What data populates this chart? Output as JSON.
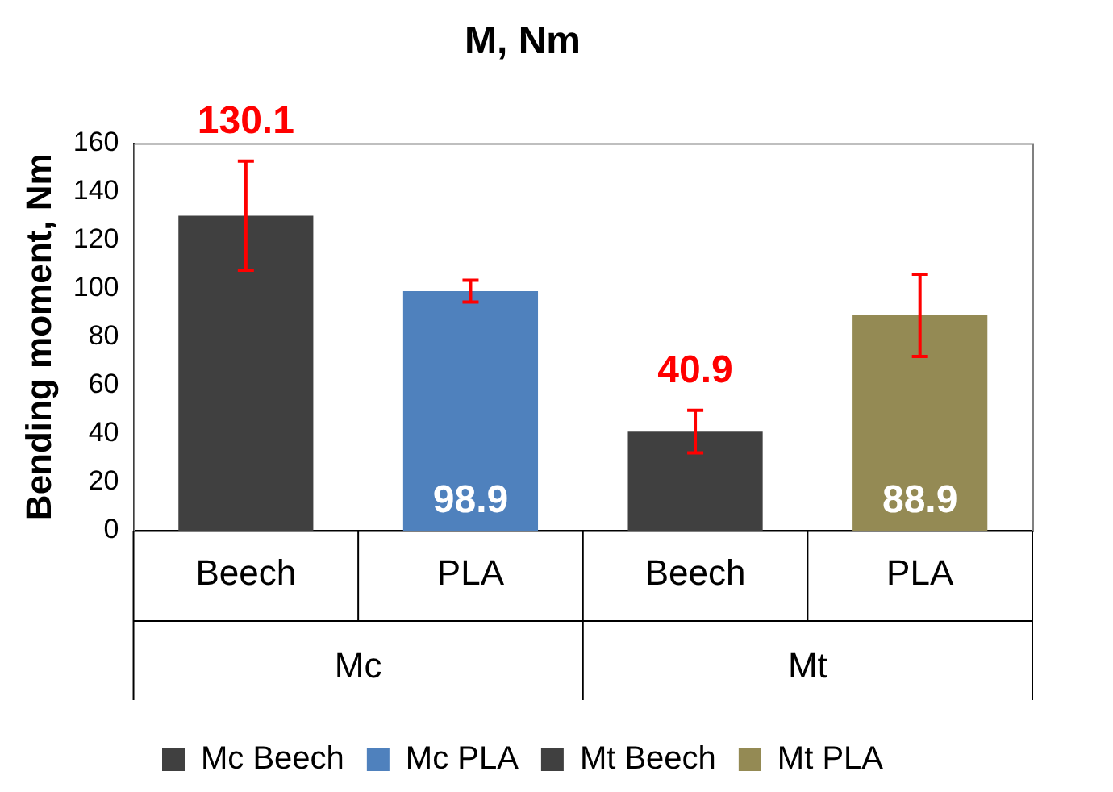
{
  "chart_data": {
    "type": "bar",
    "title": "M, Nm",
    "ylabel": "Bending moment, Nm",
    "categories": [
      "Beech",
      "PLA",
      "Beech",
      "PLA"
    ],
    "annotations": [
      "Mc",
      "Mt"
    ],
    "series": [
      {
        "name": "Mc Beech",
        "color": "#404040",
        "values": [
          130.1,
          null,
          null,
          null
        ],
        "errors": [
          22.5,
          null,
          null,
          null
        ],
        "value_labels": [
          "130.1",
          null,
          null,
          null
        ]
      },
      {
        "name": "Mc PLA",
        "color": "#4f81bd",
        "values": [
          null,
          98.9,
          null,
          null
        ],
        "errors": [
          null,
          4.5,
          null,
          null
        ],
        "value_labels": [
          null,
          "98.9",
          null,
          null
        ]
      },
      {
        "name": "Mt Beech",
        "color": "#404040",
        "values": [
          null,
          null,
          40.9,
          null
        ],
        "errors": [
          null,
          null,
          8.8,
          null
        ],
        "value_labels": [
          null,
          null,
          "40.9",
          null
        ]
      },
      {
        "name": "Mt PLA",
        "color": "#948a54",
        "values": [
          null,
          null,
          null,
          88.9
        ],
        "errors": [
          null,
          null,
          null,
          17
        ],
        "value_labels": [
          null,
          null,
          null,
          "88.9"
        ]
      }
    ],
    "ylim": [
      0,
      160
    ],
    "yticks": [
      0,
      20,
      40,
      60,
      80,
      100,
      120,
      140,
      160
    ],
    "grid": false,
    "legend": "bottom"
  }
}
